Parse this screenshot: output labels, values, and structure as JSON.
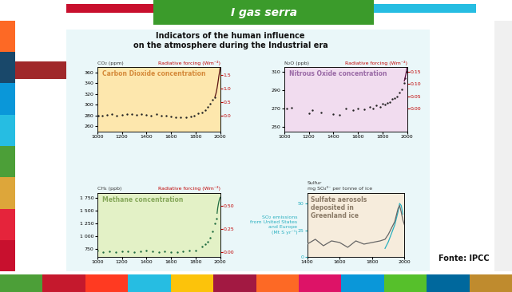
{
  "header": "I gas serra",
  "title": "Indicators of the human influence\non the atmosphere during the Industrial era",
  "source": "Fonte: IPCC",
  "chart_data": [
    {
      "type": "scatter",
      "title": "Carbon Dioxide concentration",
      "ylabel": "CO₂ (ppm)",
      "y2label": "Radiative forcing (Wm⁻²)",
      "xlim": [
        1000,
        2000
      ],
      "xticks": [
        1000,
        1200,
        1400,
        1600,
        1800,
        2000
      ],
      "ylim": [
        250,
        370
      ],
      "yticks": [
        260,
        280,
        300,
        320,
        340,
        360
      ],
      "y2lim": [
        -0.6,
        1.8
      ],
      "y2ticks": [
        0.0,
        0.5,
        1.0,
        1.5
      ],
      "series": [
        {
          "type": "scatter",
          "color": "#222222",
          "marker": "circle",
          "x": [
            1005,
            1040,
            1080,
            1120,
            1160,
            1200,
            1240,
            1280,
            1320,
            1360,
            1400,
            1440,
            1480,
            1520,
            1560,
            1600,
            1640,
            1680,
            1720,
            1760,
            1790,
            1820,
            1850,
            1880,
            1900,
            1920,
            1940,
            1955
          ],
          "values": [
            280,
            279,
            281,
            282,
            280,
            281,
            283,
            282,
            281,
            283,
            281,
            280,
            282,
            280,
            279,
            278,
            277,
            276,
            277,
            278,
            280,
            284,
            286,
            290,
            296,
            302,
            309,
            313
          ]
        },
        {
          "type": "line",
          "color": "#5a1010",
          "line_style": "solid",
          "x": [
            1958,
            1965,
            1970,
            1975,
            1980,
            1985,
            1990,
            1995,
            2000
          ],
          "values": [
            315,
            320,
            325,
            331,
            338,
            346,
            354,
            361,
            369
          ]
        }
      ]
    },
    {
      "type": "scatter",
      "title": "Nitrous Oxide concentration",
      "ylabel": "N₂O (ppb)",
      "y2label": "Radiative forcing (Wm⁻²)",
      "xlim": [
        1000,
        2000
      ],
      "xticks": [
        1000,
        1200,
        1400,
        1600,
        1800,
        2000
      ],
      "ylim": [
        245,
        315
      ],
      "yticks": [
        250,
        270,
        290,
        310
      ],
      "y2lim": [
        -0.094,
        0.169
      ],
      "y2ticks": [
        {
          "value": 0.0,
          "label": "0.00"
        },
        {
          "value": 0.05,
          "label": "0.05"
        },
        {
          "value": 0.1,
          "label": "0.10"
        },
        {
          "value": 0.15,
          "label": "0.15"
        }
      ],
      "series": [
        {
          "type": "scatter",
          "color": "#222222",
          "marker": "circle",
          "x": [
            1020,
            1060,
            1200,
            1230,
            1300,
            1400,
            1450,
            1500,
            1560,
            1600,
            1650,
            1700,
            1720,
            1750,
            1780,
            1800,
            1820,
            1840,
            1860,
            1880,
            1900,
            1920,
            1940,
            1960,
            1975,
            1985,
            1995
          ],
          "values": [
            270,
            271,
            265,
            268,
            266,
            264,
            263,
            270,
            268,
            270,
            269,
            272,
            270,
            273,
            272,
            275,
            274,
            276,
            277,
            280,
            281,
            283,
            287,
            291,
            298,
            303,
            310
          ]
        },
        {
          "type": "line",
          "color": "#5a1040",
          "line_style": "solid",
          "x": [
            1978,
            1985,
            1990,
            1995,
            2000
          ],
          "values": [
            300,
            304,
            307,
            311,
            315
          ]
        }
      ]
    },
    {
      "type": "scatter",
      "title": "Methane concentration",
      "ylabel": "CH₄ (ppb)",
      "y2label": "Radiative forcing (Wm⁻²)",
      "xlim": [
        1000,
        2000
      ],
      "xticks": [
        1000,
        1200,
        1400,
        1600,
        1800,
        2000
      ],
      "ylim": [
        600,
        1850
      ],
      "yticks": [
        750,
        {
          "value": 1000,
          "label": "1 000"
        },
        {
          "value": 1250,
          "label": "1 250"
        },
        {
          "value": 1500,
          "label": "1 500"
        },
        {
          "value": 1750,
          "label": "1 750"
        }
      ],
      "y2lim": [
        -0.056,
        0.639
      ],
      "y2ticks": [
        {
          "value": 0.0,
          "label": "0.00"
        },
        {
          "value": 0.25,
          "label": "0.25"
        },
        {
          "value": 0.5,
          "label": "0.50"
        }
      ],
      "series": [
        {
          "type": "scatter",
          "color": "#1f6b3f",
          "marker": "circle",
          "x": [
            1000,
            1050,
            1100,
            1150,
            1200,
            1250,
            1300,
            1350,
            1400,
            1450,
            1500,
            1550,
            1600,
            1650,
            1700,
            1750,
            1800,
            1850,
            1880,
            1900,
            1920,
            1940,
            1960,
            1970
          ],
          "values": [
            720,
            700,
            710,
            690,
            705,
            715,
            700,
            710,
            720,
            705,
            695,
            710,
            700,
            690,
            715,
            720,
            730,
            800,
            850,
            900,
            980,
            1100,
            1250,
            1350
          ]
        },
        {
          "type": "line",
          "color": "#1f6b3f",
          "line_style": "solid",
          "x": [
            1975,
            1980,
            1985,
            1990,
            1995,
            2000
          ],
          "values": [
            1450,
            1550,
            1620,
            1680,
            1725,
            1760
          ]
        }
      ]
    },
    {
      "type": "line",
      "title": "Sulfate aerosols\ndeposited in\nGreenland ice",
      "ylabel": "SO₂ emissions\nfrom United States\nand Europe\n(Mt S yr⁻¹)",
      "y2label": "Sulfur\nmg SO₄²⁻ per tonne of ice",
      "xlim": [
        1400,
        2000
      ],
      "xticks": [
        1400,
        1600,
        1800,
        2000
      ],
      "ylim": [
        0,
        60
      ],
      "yticks": [
        0,
        25,
        50
      ],
      "y2lim": [
        0,
        200
      ],
      "y2ticks": [],
      "series": [
        {
          "type": "line",
          "color": "#666666",
          "line_style": "solid",
          "axis": "y2",
          "x": [
            1400,
            1450,
            1500,
            1550,
            1600,
            1650,
            1700,
            1750,
            1800,
            1850,
            1880,
            1900,
            1920,
            1940,
            1950,
            1960,
            1970,
            1980,
            1990,
            2000
          ],
          "values": [
            40,
            55,
            35,
            50,
            45,
            30,
            50,
            40,
            45,
            50,
            55,
            70,
            90,
            110,
            130,
            150,
            160,
            140,
            115,
            100
          ]
        },
        {
          "type": "line",
          "color": "#2ab0c0",
          "line_style": "solid",
          "x": [
            1880,
            1900,
            1920,
            1940,
            1960,
            1970,
            1980,
            1990
          ],
          "values": [
            8,
            14,
            22,
            30,
            42,
            50,
            48,
            40
          ]
        }
      ]
    }
  ]
}
